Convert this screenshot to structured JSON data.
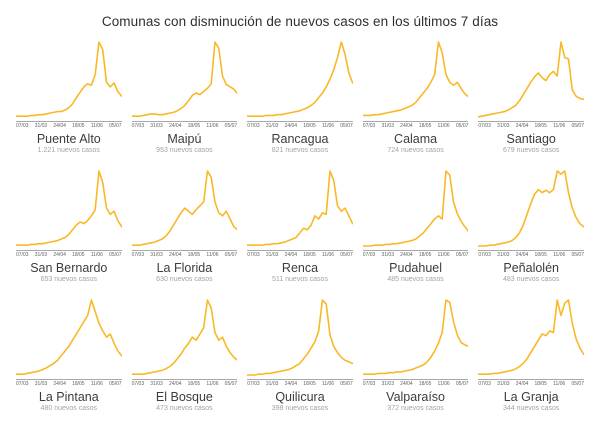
{
  "page_title": "Comunas con disminución de nuevos casos en los últimos 7 días",
  "colors": {
    "line": "#F9B826",
    "axis_line": "#a8a8a8",
    "tick_label": "#5f5f5f",
    "title": "#2e2e2e",
    "comuna_name": "#3c3c3c",
    "comuna_count": "#a3a3a3"
  },
  "chart_data": {
    "type": "line",
    "layout": "small-multiples 5x3",
    "grid": false,
    "legend": false,
    "x_tick_labels": [
      "07/03",
      "31/03",
      "24/04",
      "18/05",
      "11/06",
      "05/07"
    ],
    "value_scale": "normalized 0-100 of each panel's peak of daily new cases",
    "charts": [
      {
        "title": "Puente Alto",
        "subtitle": "1.221 nuevos casos",
        "values": [
          4,
          4,
          4,
          4,
          5,
          5,
          6,
          6,
          7,
          8,
          9,
          10,
          10,
          12,
          15,
          20,
          28,
          35,
          42,
          46,
          44,
          58,
          100,
          90,
          48,
          42,
          47,
          36,
          30
        ]
      },
      {
        "title": "Maipú",
        "subtitle": "953 nuevos casos",
        "values": [
          4,
          4,
          4,
          5,
          6,
          7,
          7,
          6,
          6,
          7,
          8,
          9,
          11,
          14,
          18,
          24,
          31,
          34,
          32,
          36,
          40,
          46,
          100,
          92,
          56,
          45,
          42,
          39,
          33
        ]
      },
      {
        "title": "Rancagua",
        "subtitle": "821 nuevos casos",
        "values": [
          4,
          4,
          4,
          4,
          4,
          5,
          5,
          5,
          6,
          6,
          7,
          8,
          9,
          10,
          11,
          13,
          15,
          18,
          22,
          28,
          34,
          42,
          52,
          64,
          80,
          100,
          84,
          60,
          47
        ]
      },
      {
        "title": "Calama",
        "subtitle": "724 nuevos casos",
        "values": [
          5,
          5,
          5,
          6,
          6,
          7,
          8,
          9,
          10,
          11,
          12,
          14,
          16,
          18,
          22,
          28,
          34,
          40,
          48,
          58,
          100,
          86,
          58,
          48,
          44,
          48,
          40,
          33,
          29
        ]
      },
      {
        "title": "Santiago",
        "subtitle": "679 nuevos casos",
        "values": [
          3,
          4,
          5,
          6,
          7,
          8,
          9,
          10,
          12,
          15,
          18,
          24,
          32,
          40,
          48,
          55,
          60,
          54,
          50,
          58,
          62,
          56,
          100,
          80,
          78,
          38,
          30,
          27,
          26
        ]
      },
      {
        "title": "San Bernardo",
        "subtitle": "653 nuevos casos",
        "values": [
          4,
          4,
          4,
          4,
          5,
          5,
          6,
          6,
          7,
          8,
          9,
          10,
          12,
          14,
          18,
          24,
          30,
          34,
          32,
          36,
          42,
          50,
          100,
          85,
          52,
          44,
          48,
          36,
          28
        ]
      },
      {
        "title": "La Florida",
        "subtitle": "630 nuevos casos",
        "values": [
          4,
          4,
          4,
          5,
          6,
          7,
          8,
          10,
          12,
          16,
          22,
          30,
          38,
          46,
          52,
          48,
          44,
          50,
          55,
          60,
          100,
          92,
          60,
          46,
          42,
          48,
          38,
          28,
          24
        ]
      },
      {
        "title": "Renca",
        "subtitle": "511 nuevos casos",
        "values": [
          4,
          4,
          4,
          4,
          4,
          5,
          5,
          6,
          6,
          7,
          8,
          10,
          12,
          14,
          20,
          26,
          24,
          30,
          42,
          38,
          46,
          44,
          100,
          88,
          55,
          48,
          52,
          42,
          32
        ]
      },
      {
        "title": "Pudahuel",
        "subtitle": "485 nuevos casos",
        "values": [
          3,
          3,
          3,
          4,
          4,
          4,
          5,
          5,
          6,
          6,
          7,
          8,
          9,
          10,
          12,
          16,
          20,
          26,
          32,
          38,
          42,
          38,
          100,
          95,
          60,
          45,
          35,
          28,
          22
        ]
      },
      {
        "title": "Peñalolén",
        "subtitle": "483 nuevos casos",
        "values": [
          3,
          3,
          3,
          4,
          4,
          5,
          6,
          7,
          8,
          10,
          14,
          20,
          30,
          44,
          58,
          70,
          76,
          72,
          75,
          72,
          76,
          100,
          96,
          100,
          72,
          52,
          40,
          32,
          28
        ]
      },
      {
        "title": "La Pintana",
        "subtitle": "480 nuevos casos",
        "values": [
          4,
          4,
          4,
          5,
          6,
          7,
          8,
          10,
          12,
          15,
          18,
          22,
          28,
          34,
          40,
          48,
          56,
          64,
          72,
          80,
          100,
          85,
          70,
          60,
          52,
          56,
          44,
          34,
          28
        ]
      },
      {
        "title": "El Bosque",
        "subtitle": "473 nuevos casos",
        "values": [
          4,
          4,
          4,
          4,
          5,
          6,
          7,
          8,
          9,
          11,
          14,
          18,
          24,
          30,
          38,
          44,
          52,
          48,
          56,
          64,
          100,
          90,
          58,
          48,
          52,
          40,
          32,
          26,
          22
        ]
      },
      {
        "title": "Quilicura",
        "subtitle": "398 nuevos casos",
        "values": [
          3,
          3,
          3,
          4,
          4,
          5,
          5,
          6,
          7,
          8,
          9,
          10,
          12,
          15,
          18,
          24,
          30,
          38,
          46,
          60,
          100,
          95,
          55,
          40,
          32,
          26,
          22,
          20,
          18
        ]
      },
      {
        "title": "Valparaíso",
        "subtitle": "372 nuevos casos",
        "values": [
          4,
          4,
          4,
          4,
          5,
          5,
          5,
          6,
          6,
          7,
          7,
          8,
          9,
          10,
          12,
          14,
          16,
          20,
          26,
          34,
          44,
          58,
          100,
          97,
          72,
          55,
          45,
          42,
          40
        ]
      },
      {
        "title": "La Granja",
        "subtitle": "344 nuevos casos",
        "values": [
          4,
          4,
          4,
          4,
          5,
          5,
          6,
          7,
          8,
          9,
          11,
          14,
          18,
          24,
          32,
          40,
          48,
          56,
          54,
          60,
          58,
          100,
          80,
          96,
          100,
          70,
          50,
          38,
          30
        ]
      }
    ]
  }
}
